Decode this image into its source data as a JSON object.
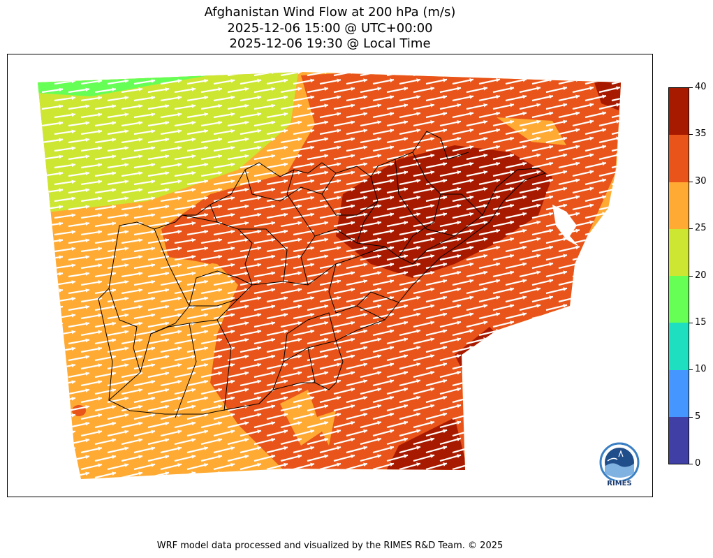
{
  "title": {
    "line1": "Afghanistan Wind Flow at 200 hPa (m/s)",
    "line2": "2025-12-06 15:00 @ UTC+00:00",
    "line3": "2025-12-06 19:30 @ Local Time"
  },
  "colorbar": {
    "levels": [
      {
        "min": 0,
        "max": 5,
        "color": "#3f3fa6"
      },
      {
        "min": 5,
        "max": 10,
        "color": "#4696ff"
      },
      {
        "min": 10,
        "max": 15,
        "color": "#1ee0c0"
      },
      {
        "min": 15,
        "max": 20,
        "color": "#66ff55"
      },
      {
        "min": 20,
        "max": 25,
        "color": "#cde632"
      },
      {
        "min": 25,
        "max": 30,
        "color": "#ffaa33"
      },
      {
        "min": 30,
        "max": 35,
        "color": "#e8541a"
      },
      {
        "min": 35,
        "max": 40,
        "color": "#a81a00"
      }
    ],
    "tick_labels": [
      "0",
      "5",
      "10",
      "15",
      "20",
      "25",
      "30",
      "35",
      "40"
    ]
  },
  "logo": {
    "text": "RIMES"
  },
  "footer": "WRF model data processed and visualized by the RIMES R&D Team. © 2025"
}
